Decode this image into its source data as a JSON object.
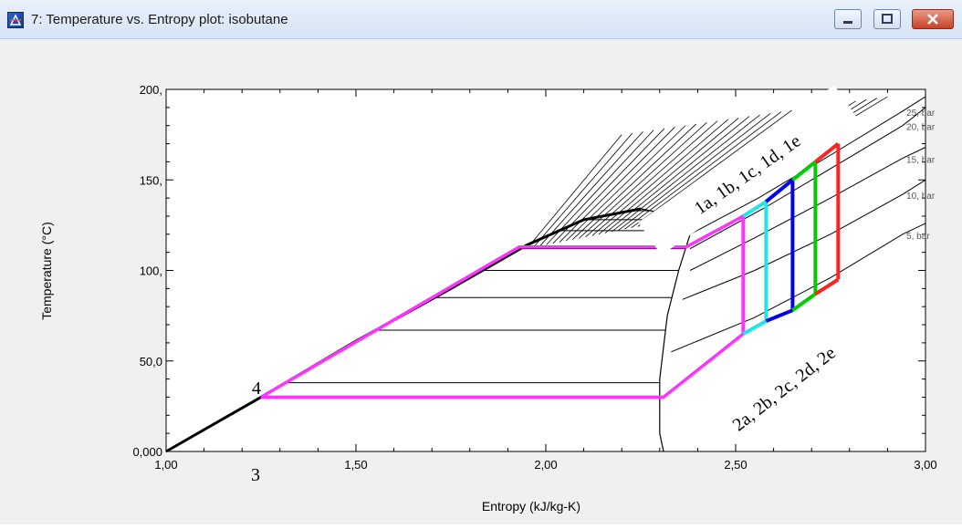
{
  "window": {
    "title": "7: Temperature vs. Entropy plot: isobutane",
    "icons": {
      "app": "app-icon",
      "minimize": "minimize-icon",
      "maximize": "maximize-icon",
      "close": "close-icon"
    }
  },
  "chart_data": {
    "type": "line",
    "title": "",
    "xlabel": "Entropy (kJ/kg-K)",
    "ylabel": "Temperature (°C)",
    "xlim": [
      1.0,
      3.0
    ],
    "ylim": [
      0,
      200
    ],
    "x_ticks": [
      1.0,
      1.5,
      2.0,
      2.5,
      3.0
    ],
    "x_tick_labels": [
      "1,00",
      "1,50",
      "2,00",
      "2,50",
      "3,00"
    ],
    "y_ticks": [
      0,
      50,
      100,
      150,
      200
    ],
    "y_tick_labels": [
      "0,000",
      "50,0",
      "100,",
      "150,",
      "200,"
    ],
    "grid": false,
    "colors": {
      "isolines": "#000000",
      "magenta": "#ff33ff",
      "cyan": "#22e6e6",
      "blue": "#0000ee",
      "green": "#00cc00",
      "red": "#ff2222"
    },
    "saturation_dome": {
      "liquid": [
        [
          1.0,
          0
        ],
        [
          1.25,
          30
        ],
        [
          1.5,
          61
        ],
        [
          1.75,
          90
        ],
        [
          1.95,
          114
        ],
        [
          2.1,
          128
        ],
        [
          2.25,
          134
        ]
      ],
      "vapor": [
        [
          2.25,
          134
        ],
        [
          2.35,
          130
        ],
        [
          2.38,
          120
        ],
        [
          2.35,
          100
        ],
        [
          2.32,
          75
        ],
        [
          2.3,
          40
        ],
        [
          2.3,
          10
        ],
        [
          2.31,
          0
        ]
      ]
    },
    "isobars": [
      {
        "label": "25, bar",
        "points": [
          [
            2.38,
            120
          ],
          [
            2.56,
            140
          ],
          [
            2.76,
            165
          ],
          [
            2.94,
            188
          ],
          [
            3.0,
            196
          ]
        ]
      },
      {
        "label": "20, bar",
        "points": [
          [
            2.38,
            112
          ],
          [
            2.58,
            135
          ],
          [
            2.78,
            160
          ],
          [
            2.94,
            180
          ],
          [
            3.0,
            190
          ]
        ]
      },
      {
        "label": "15, bar",
        "points": [
          [
            2.38,
            100
          ],
          [
            2.55,
            118
          ],
          [
            2.75,
            140
          ],
          [
            2.94,
            162
          ],
          [
            3.0,
            168
          ]
        ]
      },
      {
        "label": "10, bar",
        "points": [
          [
            2.36,
            84
          ],
          [
            2.55,
            100
          ],
          [
            2.75,
            120
          ],
          [
            2.94,
            142
          ],
          [
            3.0,
            150
          ]
        ]
      },
      {
        "label": "5, bar",
        "points": [
          [
            2.33,
            55
          ],
          [
            2.55,
            74
          ],
          [
            2.75,
            96
          ],
          [
            2.94,
            120
          ],
          [
            3.0,
            126
          ]
        ]
      }
    ],
    "cycles": [
      {
        "color": "#ff33ff",
        "state1": [
          2.52,
          130
        ],
        "state2": [
          2.52,
          65
        ]
      },
      {
        "color": "#22e6e6",
        "state1": [
          2.58,
          138
        ],
        "state2": [
          2.58,
          72
        ]
      },
      {
        "color": "#0000ee",
        "state1": [
          2.65,
          150
        ],
        "state2": [
          2.65,
          78
        ]
      },
      {
        "color": "#00cc00",
        "state1": [
          2.71,
          160
        ],
        "state2": [
          2.71,
          87
        ]
      },
      {
        "color": "#ff2222",
        "state1": [
          2.77,
          170
        ],
        "state2": [
          2.77,
          95
        ]
      }
    ],
    "base_cycle": [
      [
        1.25,
        30
      ],
      [
        1.93,
        113
      ],
      [
        2.37,
        113
      ],
      [
        2.52,
        130
      ],
      [
        2.52,
        65
      ],
      [
        2.31,
        30
      ],
      [
        1.25,
        30
      ]
    ],
    "annotations": [
      {
        "text": "1a, 1b, 1c, 1d, 1e"
      },
      {
        "text": "2a, 2b, 2c, 2d, 2e"
      },
      {
        "text": "4"
      },
      {
        "text": "3"
      }
    ]
  }
}
